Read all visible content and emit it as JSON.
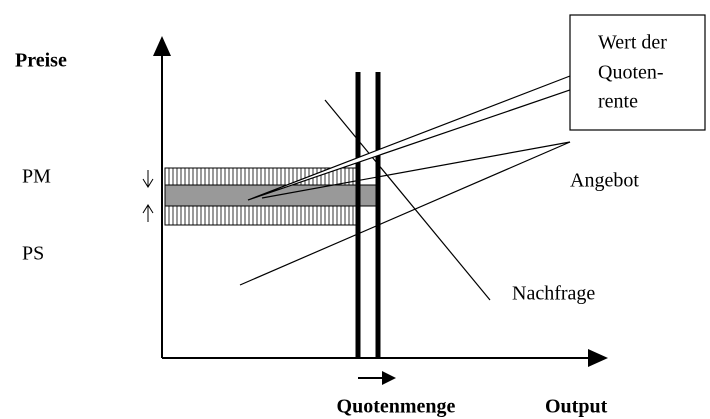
{
  "diagram": {
    "y_axis_label": "Preise",
    "x_axis_label": "Output",
    "quota_label": "Quotenmenge",
    "price_labels": [
      "PM",
      "PS"
    ],
    "supply_label": "Angebot",
    "demand_label": "Nachfrage",
    "callout": [
      "Wert der",
      "Quoten-",
      "rente"
    ]
  }
}
